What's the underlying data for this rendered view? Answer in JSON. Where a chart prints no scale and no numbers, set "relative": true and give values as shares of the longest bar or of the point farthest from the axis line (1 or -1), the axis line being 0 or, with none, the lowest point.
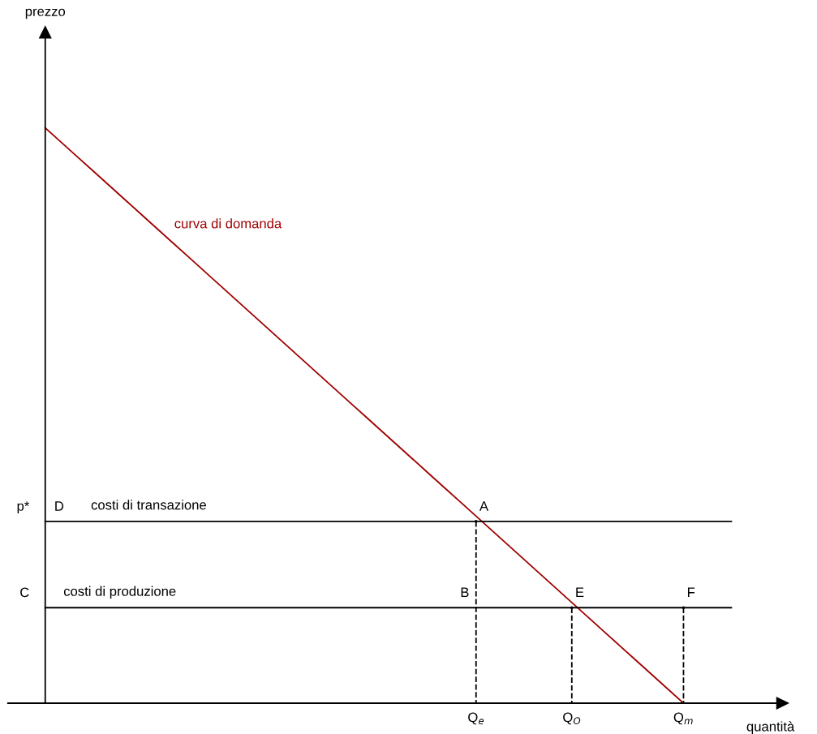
{
  "chart_data": {
    "type": "line",
    "relative": true,
    "xlabel": "quantità",
    "legend": false,
    "marker": "none",
    "categories": [
      null,
      null,
      null,
      null,
      null,
      null,
      null,
      null,
      null,
      null,
      null,
      null,
      null,
      null,
      null,
      null,
      null,
      null,
      null,
      null,
      null,
      null,
      null,
      null,
      null,
      null,
      null,
      "Q$_{e}$",
      null,
      null,
      null,
      null,
      null,
      "Q$_{O}$",
      null,
      null,
      null,
      null,
      null,
      null,
      "Q$_{m}$",
      null,
      null,
      null
    ],
    "series": [
      {
        "name": "curva di domanda",
        "color": "#a00000",
        "line_style": "solid",
        "values": [
          1.0,
          0.975,
          0.95,
          0.925,
          0.9,
          0.875,
          0.85,
          0.825,
          0.8,
          0.775,
          0.75,
          0.725,
          0.7,
          0.675,
          0.65,
          0.625,
          0.6,
          0.575,
          0.55,
          0.525,
          0.5,
          0.475,
          0.45,
          0.425,
          0.4,
          0.375,
          0.35,
          0.325,
          0.3,
          0.275,
          0.25,
          0.225,
          0.2,
          0.175,
          0.15,
          0.125,
          0.1,
          0.075,
          0.05,
          0.025,
          0,
          null,
          null,
          null
        ]
      },
      {
        "name": "costi di transazione",
        "color": "#000000",
        "line_style": "solid",
        "values": [
          0.316,
          0.316,
          0.316,
          0.316,
          0.316,
          0.316,
          0.316,
          0.316,
          0.316,
          0.316,
          0.316,
          0.316,
          0.316,
          0.316,
          0.316,
          0.316,
          0.316,
          0.316,
          0.316,
          0.316,
          0.316,
          0.316,
          0.316,
          0.316,
          0.316,
          0.316,
          0.316,
          0.316,
          0.316,
          0.316,
          0.316,
          0.316,
          0.316,
          0.316,
          0.316,
          0.316,
          0.316,
          0.316,
          0.316,
          0.316,
          0.316,
          0.316,
          0.316,
          0.316
        ]
      },
      {
        "name": "costi di produzione",
        "color": "#000000",
        "line_style": "solid",
        "values": [
          0.166,
          0.166,
          0.166,
          0.166,
          0.166,
          0.166,
          0.166,
          0.166,
          0.166,
          0.166,
          0.166,
          0.166,
          0.166,
          0.166,
          0.166,
          0.166,
          0.166,
          0.166,
          0.166,
          0.166,
          0.166,
          0.166,
          0.166,
          0.166,
          0.166,
          0.166,
          0.166,
          0.166,
          0.166,
          0.166,
          0.166,
          0.166,
          0.166,
          0.166,
          0.166,
          0.166,
          0.166,
          0.166,
          0.166,
          0.166,
          0.166,
          0.166,
          0.166,
          0.166
        ]
      },
      {
        "type": "lollipop",
        "color": "#000000",
        "line_style": "dashed",
        "values": [
          null,
          null,
          null,
          null,
          null,
          null,
          null,
          null,
          null,
          null,
          null,
          null,
          null,
          null,
          null,
          null,
          null,
          null,
          null,
          null,
          null,
          null,
          null,
          null,
          null,
          null,
          null,
          0.316,
          null,
          null,
          null,
          null,
          null,
          0.166,
          null,
          null,
          null,
          null,
          null,
          null,
          0.166,
          null,
          null,
          null
        ]
      }
    ],
    "annotations": [
      "prezzo",
      "p*",
      "D",
      "C",
      {
        "text": "A",
        "x": "Q$_{e}$",
        "y": 0.316
      },
      {
        "text": "B",
        "x": "Q$_{e}$",
        "y": 0.166
      },
      {
        "text": "E",
        "x": "Q$_{O}$",
        "y": 0.166
      },
      {
        "text": "F",
        "x": "Q$_{m}$",
        "y": 0.166
      }
    ]
  }
}
